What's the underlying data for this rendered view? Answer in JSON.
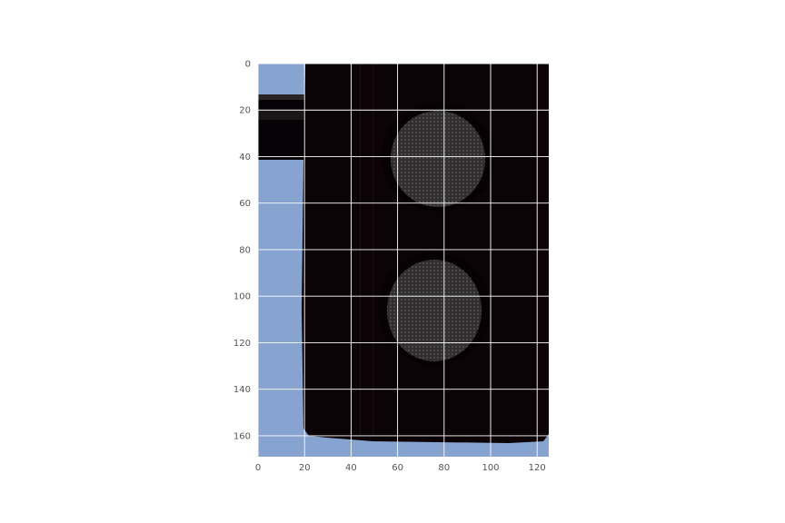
{
  "figure": {
    "background": "#ffffff",
    "sky_color": "#87a3cf",
    "housing_color": "#0b0306",
    "lens_color": "#3a3838",
    "grid_color": "#ffffff",
    "tick_label_color": "#555555"
  },
  "image_axes": {
    "xlim": [
      0,
      125
    ],
    "ylim": [
      169,
      0
    ],
    "xticks": [
      0,
      20,
      40,
      60,
      80,
      100,
      120
    ],
    "yticks": [
      0,
      20,
      40,
      60,
      80,
      100,
      120,
      140,
      160
    ],
    "xtick_labels": [
      "0",
      "20",
      "40",
      "60",
      "80",
      "100",
      "120"
    ],
    "ytick_labels": [
      "0",
      "20",
      "40",
      "60",
      "80",
      "100",
      "120",
      "140",
      "160"
    ],
    "grid": true,
    "image_subject": "traffic light housing with two unlit circular lenses against blue sky"
  }
}
